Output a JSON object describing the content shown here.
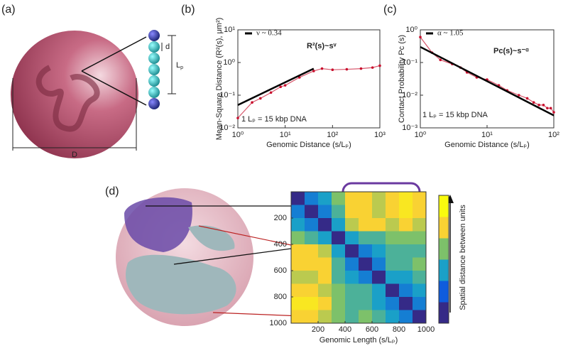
{
  "labels": {
    "a": "(a)",
    "b": "(b)",
    "c": "(c)",
    "d": "(d)"
  },
  "illustration": {
    "diameter_label": "D",
    "bead_label": "d",
    "segment_label": "L",
    "segment_sub": "p"
  },
  "chart_data": [
    {
      "type": "line",
      "log_x": true,
      "log_y": true,
      "xlabel": "Genomic Distance (s/Lₚ)",
      "ylabel": "Mean-Square Distance (R²(s), μm²)",
      "xlim": [
        1,
        1000
      ],
      "ylim": [
        0.01,
        10
      ],
      "xticks": [
        {
          "value": 1,
          "label": "10⁰"
        },
        {
          "value": 10,
          "label": "10¹"
        },
        {
          "value": 100,
          "label": "10²"
        },
        {
          "value": 1000,
          "label": "10³"
        }
      ],
      "yticks": [
        {
          "value": 0.01,
          "label": "10⁻²"
        },
        {
          "value": 0.1,
          "label": "10⁻¹"
        },
        {
          "value": 1,
          "label": "10⁰"
        },
        {
          "value": 10,
          "label": "10¹"
        }
      ],
      "annotations": [
        "R²(s)~sᵛ",
        "1 Lₚ = 15 kbp DNA"
      ],
      "series": [
        {
          "mode": "markers",
          "color": "#c8102e",
          "x": [
            1,
            2,
            3,
            5,
            8,
            10,
            20,
            40,
            60,
            100,
            200,
            400,
            700,
            1000
          ],
          "values": [
            0.02,
            0.06,
            0.08,
            0.12,
            0.18,
            0.2,
            0.35,
            0.55,
            0.65,
            0.6,
            0.62,
            0.65,
            0.7,
            0.8
          ]
        },
        {
          "name": "ν ~ 0.34",
          "mode": "line",
          "color": "#000000",
          "x": [
            1,
            40
          ],
          "values": [
            0.05,
            0.65
          ]
        }
      ]
    },
    {
      "type": "line",
      "log_x": true,
      "log_y": true,
      "xlabel": "Genomic Distance (s/Lₚ)",
      "ylabel": "Contact Probability Pc (s)",
      "xlim": [
        1,
        100
      ],
      "ylim": [
        0.001,
        1
      ],
      "xticks": [
        {
          "value": 1,
          "label": "10⁰"
        },
        {
          "value": 10,
          "label": "10¹"
        },
        {
          "value": 100,
          "label": "10²"
        }
      ],
      "yticks": [
        {
          "value": 0.001,
          "label": "10⁻³"
        },
        {
          "value": 0.01,
          "label": "10⁻²"
        },
        {
          "value": 0.1,
          "label": "10⁻¹"
        },
        {
          "value": 1,
          "label": "10⁰"
        }
      ],
      "annotations": [
        "Pc(s)~s⁻ᵅ",
        "1 Lₚ = 15 kbp DNA"
      ],
      "series": [
        {
          "mode": "markers",
          "color": "#c8102e",
          "x": [
            1,
            1.5,
            2,
            3,
            4,
            5,
            7,
            10,
            15,
            20,
            30,
            40,
            50,
            60,
            70,
            80,
            90,
            100
          ],
          "values": [
            0.6,
            0.2,
            0.12,
            0.09,
            0.07,
            0.05,
            0.035,
            0.03,
            0.02,
            0.014,
            0.01,
            0.008,
            0.006,
            0.005,
            0.005,
            0.004,
            0.004,
            0.003
          ]
        },
        {
          "name": "α ~ 1.05",
          "mode": "line",
          "color": "#000000",
          "x": [
            1,
            100
          ],
          "values": [
            0.3,
            0.0024
          ]
        }
      ]
    },
    {
      "type": "heatmap",
      "xlabel": "Genomic Length (s/Lₚ)",
      "colorbar_label": "Spatial distance between units",
      "xlim": [
        0,
        1000
      ],
      "ylim": [
        0,
        1000
      ],
      "xticks": [
        200,
        400,
        600,
        800,
        1000
      ],
      "yticks": [
        200,
        400,
        600,
        800,
        1000
      ],
      "colors": [
        "#352a87",
        "#0f5cdd",
        "#1aa0c8",
        "#7dc16a",
        "#f9d233",
        "#f9fb0e"
      ],
      "z": [
        [
          0,
          0.3,
          0.4,
          0.6,
          0.8,
          0.8,
          0.7,
          0.8,
          0.9,
          0.8
        ],
        [
          0.3,
          0,
          0.3,
          0.5,
          0.8,
          0.8,
          0.7,
          0.8,
          0.9,
          0.8
        ],
        [
          0.4,
          0.3,
          0,
          0.4,
          0.7,
          0.8,
          0.8,
          0.7,
          0.8,
          0.7
        ],
        [
          0.6,
          0.5,
          0.4,
          0,
          0.4,
          0.5,
          0.5,
          0.6,
          0.6,
          0.6
        ],
        [
          0.8,
          0.8,
          0.7,
          0.4,
          0,
          0.3,
          0.4,
          0.5,
          0.5,
          0.5
        ],
        [
          0.8,
          0.8,
          0.8,
          0.5,
          0.3,
          0,
          0.3,
          0.5,
          0.5,
          0.6
        ],
        [
          0.7,
          0.7,
          0.8,
          0.5,
          0.4,
          0.3,
          0,
          0.4,
          0.4,
          0.5
        ],
        [
          0.8,
          0.8,
          0.7,
          0.6,
          0.5,
          0.5,
          0.4,
          0,
          0.3,
          0.4
        ],
        [
          0.9,
          0.9,
          0.8,
          0.6,
          0.5,
          0.5,
          0.4,
          0.3,
          0,
          0.3
        ],
        [
          0.8,
          0.8,
          0.7,
          0.6,
          0.5,
          0.6,
          0.5,
          0.4,
          0.3,
          0
        ]
      ]
    }
  ]
}
